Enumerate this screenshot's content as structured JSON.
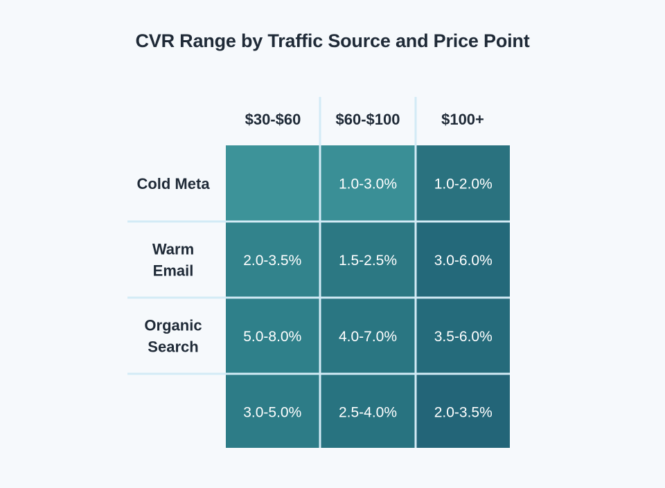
{
  "chart_data": {
    "type": "heatmap",
    "title": "CVR Range by Traffic Source and Price Point",
    "columns": [
      "$30-$60",
      "$60-$100",
      "$100+"
    ],
    "rows": [
      "Cold Meta",
      "Warm\nEmail",
      "Organic\nSearch",
      ""
    ],
    "values": [
      [
        "",
        "1.0-3.0%",
        "1.0-2.0%"
      ],
      [
        "2.0-3.5%",
        "1.5-2.5%",
        "3.0-6.0%"
      ],
      [
        "5.0-8.0%",
        "4.0-7.0%",
        "3.5-6.0%"
      ],
      [
        "3.0-5.0%",
        "2.5-4.0%",
        "2.0-3.5%"
      ]
    ],
    "cell_colors": [
      [
        "#3d9399",
        "#3a8f96",
        "#2a727f"
      ],
      [
        "#32838c",
        "#2c7883",
        "#24697a"
      ],
      [
        "#2f808a",
        "#2a7682",
        "#256b7b"
      ],
      [
        "#2d7c87",
        "#287380",
        "#236578"
      ]
    ],
    "legend": "none",
    "grid": true
  }
}
